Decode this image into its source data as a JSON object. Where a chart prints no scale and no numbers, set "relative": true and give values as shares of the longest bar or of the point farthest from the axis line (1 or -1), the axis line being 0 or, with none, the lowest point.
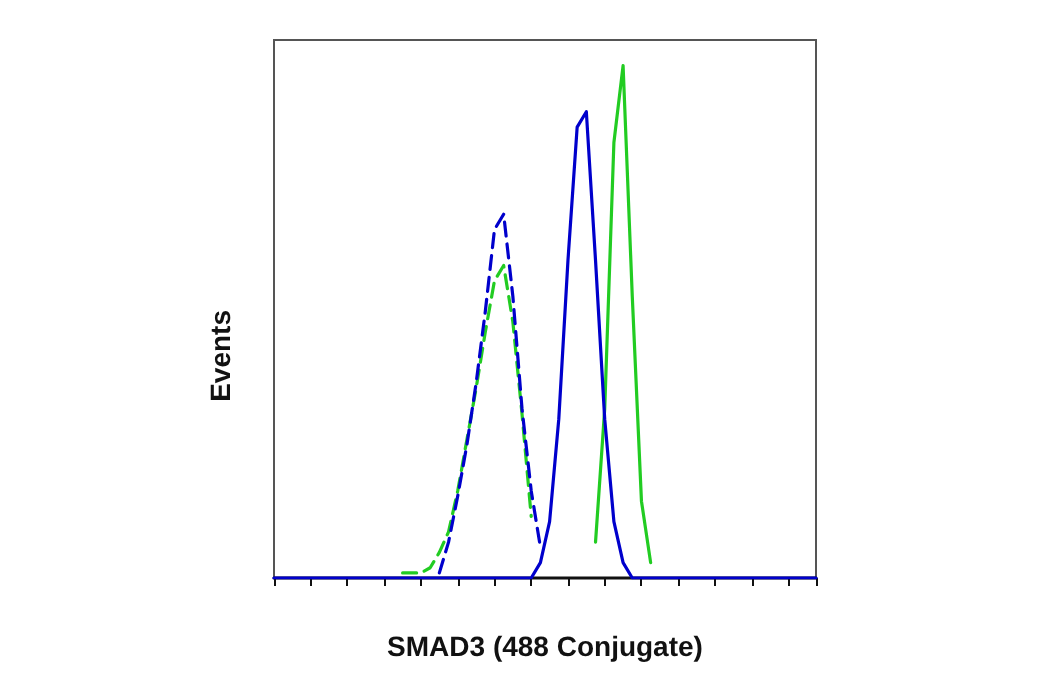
{
  "chart_data": {
    "type": "line",
    "xlabel": "SMAD3 (488 Conjugate)",
    "ylabel": "Events",
    "relative": true,
    "grid": false,
    "categories": [
      null,
      null,
      null,
      null,
      null,
      null,
      null,
      null,
      null,
      null,
      null,
      null,
      null,
      null,
      null,
      null,
      null,
      null,
      null,
      null,
      null,
      null,
      null,
      null,
      null,
      null,
      null,
      null,
      null,
      null,
      null,
      null,
      null,
      null,
      null,
      null,
      null,
      null,
      null,
      null,
      null,
      null,
      null,
      null,
      null,
      null,
      null,
      null,
      null,
      null,
      null,
      null,
      null,
      null,
      null,
      null,
      null,
      null,
      null,
      null
    ],
    "series": [
      {
        "color": "#22cc22",
        "line_style": "dashed",
        "values": [
          null,
          null,
          null,
          null,
          null,
          null,
          null,
          null,
          null,
          null,
          null,
          null,
          null,
          null,
          0.01,
          0.01,
          0.01,
          0.02,
          0.05,
          0.09,
          0.17,
          0.27,
          0.37,
          0.48,
          0.58,
          0.61,
          0.5,
          0.32,
          0.12,
          null,
          null,
          null,
          null,
          null,
          null,
          null,
          null,
          null,
          null,
          null,
          null,
          null,
          null,
          null,
          null,
          null,
          null,
          null,
          null,
          null,
          null,
          null,
          null,
          null,
          null,
          null,
          null,
          null,
          null,
          null
        ]
      },
      {
        "color": "#0000cc",
        "line_style": "dashed",
        "values": [
          null,
          null,
          null,
          null,
          null,
          null,
          null,
          null,
          null,
          null,
          null,
          null,
          null,
          null,
          null,
          null,
          null,
          null,
          0.01,
          0.07,
          0.16,
          0.26,
          0.38,
          0.52,
          0.68,
          0.71,
          0.55,
          0.33,
          0.17,
          0.06,
          null,
          null,
          null,
          null,
          null,
          null,
          null,
          null,
          null,
          null,
          null,
          null,
          null,
          null,
          null,
          null,
          null,
          null,
          null,
          null,
          null,
          null,
          null,
          null,
          null,
          null,
          null,
          null,
          null,
          null
        ]
      },
      {
        "color": "#22cc22",
        "line_style": "solid",
        "values": [
          null,
          null,
          null,
          null,
          null,
          null,
          null,
          null,
          null,
          null,
          null,
          null,
          null,
          null,
          null,
          null,
          null,
          null,
          null,
          null,
          null,
          null,
          null,
          null,
          null,
          null,
          null,
          null,
          null,
          null,
          null,
          null,
          null,
          null,
          null,
          0.07,
          0.33,
          0.85,
          1,
          0.55,
          0.15,
          0.03,
          null,
          null,
          null,
          null,
          null,
          null,
          null,
          null,
          null,
          null,
          null,
          null,
          null,
          null,
          null,
          null,
          null,
          null
        ]
      },
      {
        "color": "#0000cc",
        "line_style": "solid",
        "values": [
          0,
          0,
          0,
          0,
          0,
          0,
          0,
          0,
          0,
          0,
          0,
          0,
          0,
          0,
          0,
          0,
          0,
          0,
          0,
          0,
          0,
          0,
          0,
          0,
          0,
          0,
          0,
          0,
          0,
          0.03,
          0.11,
          0.31,
          0.62,
          0.88,
          0.91,
          0.62,
          0.31,
          0.11,
          0.03,
          0,
          0,
          0,
          0,
          0,
          0,
          0,
          0,
          0,
          0,
          0,
          0,
          0,
          0,
          0,
          0,
          0,
          0,
          0,
          0,
          0
        ]
      }
    ]
  }
}
